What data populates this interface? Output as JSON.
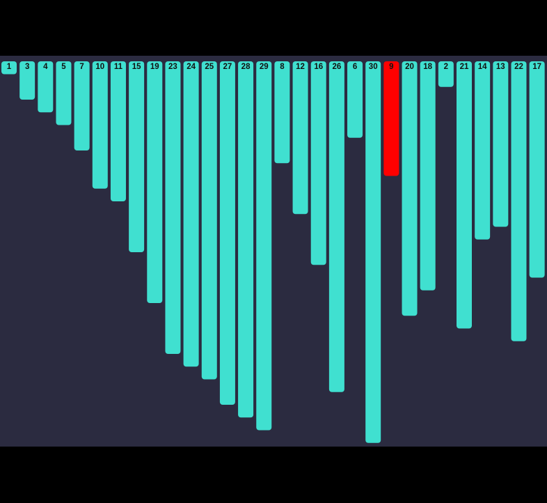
{
  "chart_data": {
    "type": "bar",
    "orientation": "vertical-downward",
    "categories": [
      "1",
      "3",
      "4",
      "5",
      "7",
      "10",
      "11",
      "15",
      "19",
      "23",
      "24",
      "25",
      "27",
      "28",
      "29",
      "8",
      "12",
      "16",
      "26",
      "6",
      "30",
      "9",
      "20",
      "18",
      "2",
      "21",
      "14",
      "13",
      "22",
      "17"
    ],
    "values": [
      1,
      3,
      4,
      5,
      7,
      10,
      11,
      15,
      19,
      23,
      24,
      25,
      27,
      28,
      29,
      8,
      12,
      16,
      26,
      6,
      30,
      9,
      20,
      18,
      2,
      21,
      14,
      13,
      22,
      17
    ],
    "highlighted_index": 21,
    "ylim": [
      0,
      30
    ],
    "title": "",
    "xlabel": "",
    "ylabel": ""
  },
  "colors": {
    "bar": "#40e0d0",
    "highlight": "#ff0000",
    "plot_background": "#2b2b40",
    "page_background": "#000000",
    "label": "#111111"
  }
}
